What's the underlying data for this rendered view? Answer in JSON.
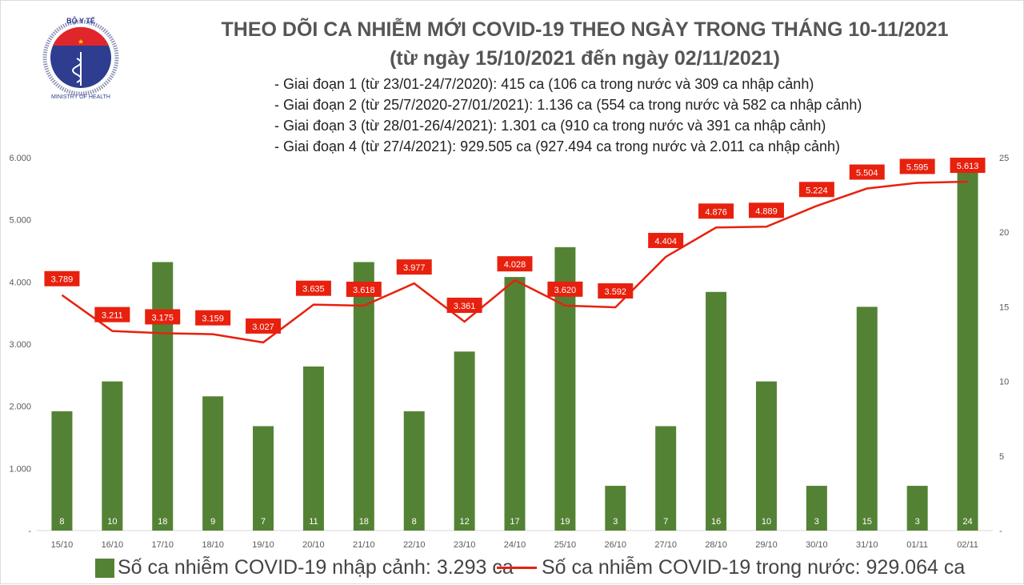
{
  "logo": {
    "top_text": "BỘ Y TẾ",
    "bottom_text": "MINISTRY OF HEALTH"
  },
  "title": "THEO DÕI CA NHIỄM MỚI COVID-19 THEO NGÀY TRONG THÁNG 10-11/2021",
  "subtitle": "(từ ngày 15/10/2021 đến ngày 02/11/2021)",
  "notes": [
    "- Giai đoạn 1 (từ 23/01-24/7/2020): 415 ca (106 ca trong nước và 309 ca nhập cảnh)",
    "- Giai đoạn 2 (từ 25/7/2020-27/01/2021): 1.136 ca (554 ca trong nước và 582 ca nhập cảnh)",
    "- Giai đoạn 3 (từ 28/01-26/4/2021): 1.301 ca (910 ca trong nước và 391 ca nhập cảnh)",
    "- Giai đoạn 4 (từ 27/4/2021): 929.505 ca (927.494 ca trong nước và 2.011 ca nhập cảnh)"
  ],
  "chart_data": {
    "type": "bar+line",
    "categories": [
      "15/10",
      "16/10",
      "17/10",
      "18/10",
      "19/10",
      "20/10",
      "21/10",
      "22/10",
      "23/10",
      "24/10",
      "25/10",
      "26/10",
      "27/10",
      "28/10",
      "29/10",
      "30/10",
      "31/10",
      "01/11",
      "02/11"
    ],
    "series": [
      {
        "name": "Số ca nhiễm COVID-19 nhập cảnh: 3.293 ca",
        "type": "bar",
        "axis": "right",
        "color": "#548235",
        "values": [
          8,
          10,
          18,
          9,
          7,
          11,
          18,
          8,
          12,
          17,
          19,
          3,
          7,
          16,
          10,
          3,
          15,
          3,
          24
        ],
        "labels": [
          "8",
          "10",
          "18",
          "9",
          "7",
          "11",
          "18",
          "8",
          "12",
          "17",
          "19",
          "3",
          "7",
          "16",
          "10",
          "3",
          "15",
          "3",
          "24"
        ]
      },
      {
        "name": "Số ca nhiễm COVID-19 trong nước: 929.064 ca",
        "type": "line",
        "axis": "left",
        "color": "#e8200e",
        "values": [
          3789,
          3211,
          3175,
          3159,
          3027,
          3635,
          3618,
          3977,
          3361,
          4028,
          3620,
          3592,
          4404,
          4876,
          4889,
          5224,
          5504,
          5595,
          5613
        ],
        "labels": [
          "3.789",
          "3.211",
          "3.175",
          "3.159",
          "3.027",
          "3.635",
          "3.618",
          "3.977",
          "3.361",
          "4.028",
          "3.620",
          "3.592",
          "4.404",
          "4.876",
          "4.889",
          "5.224",
          "5.504",
          "5.595",
          "5.613"
        ]
      }
    ],
    "left_axis": {
      "range": [
        0,
        6000
      ],
      "ticks": [
        "-",
        "1.000",
        "2.000",
        "3.000",
        "4.000",
        "5.000",
        "6.000"
      ]
    },
    "right_axis": {
      "range": [
        0,
        25
      ],
      "ticks": [
        "-",
        "5",
        "10",
        "15",
        "20",
        "25"
      ]
    },
    "grid": false,
    "legend": "bottom"
  }
}
